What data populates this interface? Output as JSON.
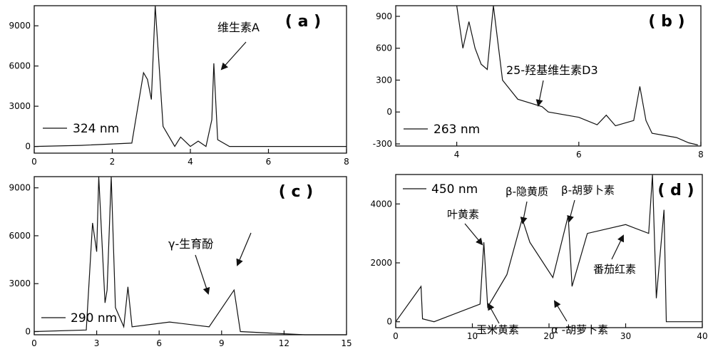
{
  "chart_data": [
    {
      "type": "line",
      "panel_label": "( a )",
      "legend": "324 nm",
      "legend_position": "lower-left",
      "annotations": [
        "维生素A"
      ],
      "xlim": [
        0,
        8
      ],
      "ylim": [
        -500,
        10500
      ],
      "xticks": [
        0,
        2,
        4,
        6,
        8
      ],
      "yticks": [
        0,
        3000,
        6000,
        9000
      ],
      "xticklabels": [
        "0",
        "2",
        "4",
        "6",
        "8"
      ],
      "yticklabels": [
        "0",
        "3000",
        "6000",
        "9000"
      ],
      "series": [
        {
          "values": [
            [
              0,
              0
            ],
            [
              1.2,
              80
            ],
            [
              2.5,
              250
            ],
            [
              2.8,
              5500
            ],
            [
              2.9,
              5000
            ],
            [
              3.0,
              3500
            ],
            [
              3.1,
              10500
            ],
            [
              3.3,
              1500
            ],
            [
              3.6,
              0
            ],
            [
              3.75,
              700
            ],
            [
              4.0,
              0
            ],
            [
              4.2,
              400
            ],
            [
              4.4,
              0
            ],
            [
              4.55,
              2000
            ],
            [
              4.6,
              6200
            ],
            [
              4.7,
              500
            ],
            [
              5.0,
              0
            ],
            [
              6.5,
              0
            ],
            [
              8,
              0
            ]
          ]
        }
      ]
    },
    {
      "type": "line",
      "panel_label": "( b )",
      "legend": "263 nm",
      "legend_position": "lower-left",
      "annotations": [
        "25-羟基维生素D3"
      ],
      "xlim": [
        3.0,
        8.0
      ],
      "ylim": [
        -320,
        1000
      ],
      "xticks": [
        4,
        6,
        8
      ],
      "yticks": [
        -300,
        0,
        300,
        600,
        900
      ],
      "xticklabels": [
        "4",
        "6",
        "8"
      ],
      "yticklabels": [
        "-300",
        "0",
        "300",
        "600",
        "900"
      ],
      "series": [
        {
          "values": [
            [
              4.0,
              1000
            ],
            [
              4.1,
              600
            ],
            [
              4.2,
              850
            ],
            [
              4.3,
              600
            ],
            [
              4.4,
              450
            ],
            [
              4.5,
              400
            ],
            [
              4.6,
              1000
            ],
            [
              4.75,
              300
            ],
            [
              5.0,
              120
            ],
            [
              5.4,
              50
            ],
            [
              5.5,
              0
            ],
            [
              6.0,
              -50
            ],
            [
              6.3,
              -120
            ],
            [
              6.45,
              -30
            ],
            [
              6.6,
              -130
            ],
            [
              6.9,
              -80
            ],
            [
              7.0,
              240
            ],
            [
              7.1,
              -80
            ],
            [
              7.2,
              -200
            ],
            [
              7.6,
              -240
            ],
            [
              7.8,
              -290
            ],
            [
              7.95,
              -310
            ]
          ]
        }
      ]
    },
    {
      "type": "line",
      "panel_label": "( c )",
      "legend": "290 nm",
      "legend_position": "lower-left",
      "annotations": [
        "γ-生育酚"
      ],
      "xlim": [
        0,
        15
      ],
      "ylim": [
        -200,
        9700
      ],
      "xticks": [
        0,
        3,
        6,
        9,
        12,
        15
      ],
      "yticks": [
        0,
        3000,
        6000,
        9000
      ],
      "xticklabels": [
        "0",
        "3",
        "6",
        "9",
        "12",
        "15"
      ],
      "yticklabels": [
        "0",
        "3000",
        "6000",
        "9000"
      ],
      "series": [
        {
          "values": [
            [
              0,
              0
            ],
            [
              2.5,
              100
            ],
            [
              2.8,
              6800
            ],
            [
              3.0,
              5000
            ],
            [
              3.1,
              9700
            ],
            [
              3.4,
              1800
            ],
            [
              3.5,
              2600
            ],
            [
              3.7,
              9700
            ],
            [
              3.9,
              1500
            ],
            [
              4.3,
              300
            ],
            [
              4.5,
              2800
            ],
            [
              4.7,
              300
            ],
            [
              6.5,
              600
            ],
            [
              8.4,
              300
            ],
            [
              9.6,
              2600
            ],
            [
              9.9,
              0
            ],
            [
              13,
              -350
            ],
            [
              15,
              -350
            ]
          ]
        }
      ]
    },
    {
      "type": "line",
      "panel_label": "( d )",
      "legend": "450 nm",
      "legend_position": "upper-left",
      "annotations": [
        "叶黄素",
        "β-隐黄质",
        "β-胡萝卜素",
        "番茄红素",
        "玉米黄素",
        "α -胡萝卜素"
      ],
      "xlim": [
        0,
        40
      ],
      "ylim": [
        -200,
        5000
      ],
      "xticks": [
        0,
        10,
        20,
        30,
        40
      ],
      "yticks": [
        0,
        2000,
        4000
      ],
      "xticklabels": [
        "0",
        "10",
        "20",
        "30",
        "40"
      ],
      "yticklabels": [
        "0",
        "2000",
        "4000"
      ],
      "series": [
        {
          "values": [
            [
              0,
              0
            ],
            [
              3.3,
              1200
            ],
            [
              3.5,
              100
            ],
            [
              5,
              0
            ],
            [
              11,
              600
            ],
            [
              11.5,
              2700
            ],
            [
              12,
              500
            ],
            [
              14.5,
              1600
            ],
            [
              16.5,
              3500
            ],
            [
              17.5,
              2700
            ],
            [
              20.5,
              1500
            ],
            [
              22.5,
              3600
            ],
            [
              23,
              1200
            ],
            [
              25,
              3000
            ],
            [
              30,
              3300
            ],
            [
              33,
              3000
            ],
            [
              33.5,
              5000
            ],
            [
              34,
              800
            ],
            [
              35,
              3800
            ],
            [
              35.3,
              0
            ],
            [
              40,
              0
            ]
          ]
        }
      ]
    }
  ]
}
